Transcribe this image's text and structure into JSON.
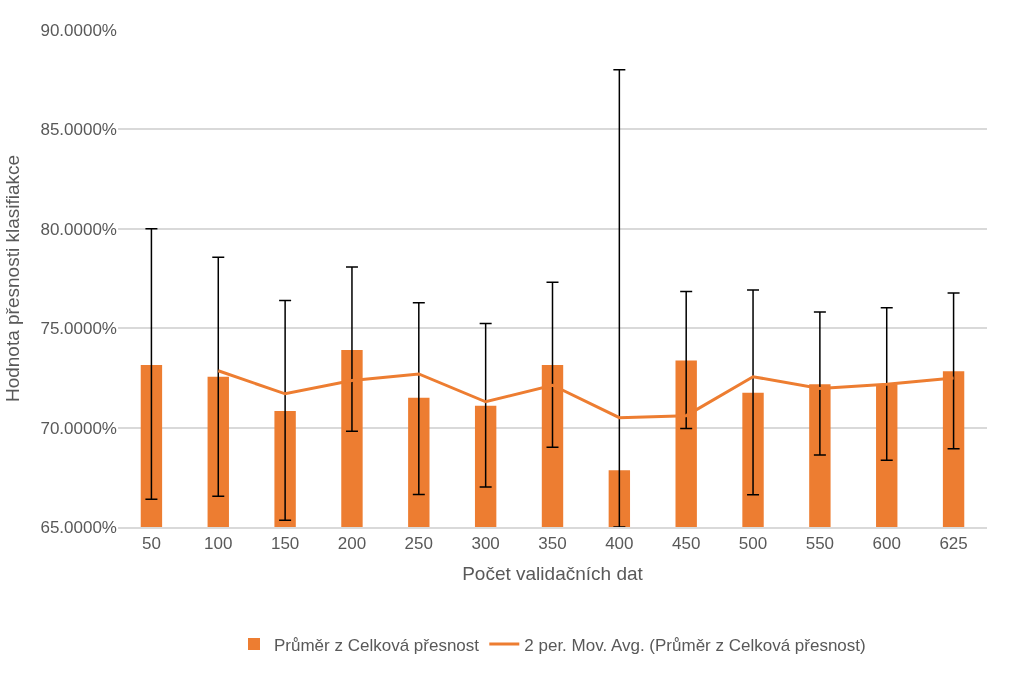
{
  "chart_data": {
    "type": "bar",
    "xlabel": "Počet validačních dat",
    "ylabel": "Hodnota přesnosti klasifiakce",
    "categories": [
      "50",
      "100",
      "150",
      "200",
      "250",
      "300",
      "350",
      "400",
      "450",
      "500",
      "550",
      "600",
      "625"
    ],
    "series": [
      {
        "name": "Průměr z Celková přesnost",
        "color": "#ed7d31",
        "values": [
          73.15,
          72.56,
          70.83,
          73.9,
          71.5,
          71.1,
          73.15,
          67.86,
          73.37,
          71.75,
          72.18,
          72.18,
          72.83
        ],
        "errors": [
          [
            66.39,
            80.0
          ],
          [
            66.55,
            78.57
          ],
          [
            65.34,
            76.39
          ],
          [
            69.82,
            78.08
          ],
          [
            66.64,
            76.28
          ],
          [
            67.01,
            75.24
          ],
          [
            69.01,
            77.31
          ],
          [
            65.0,
            88.0
          ],
          [
            69.95,
            76.84
          ],
          [
            66.62,
            76.92
          ],
          [
            68.62,
            75.82
          ],
          [
            68.36,
            76.03
          ],
          [
            68.94,
            76.77
          ]
        ]
      },
      {
        "name": "2 per. Mov. Avg. (Průměr z Celková přesnost)",
        "type": "line",
        "color": "#ed7d31",
        "values": [
          null,
          72.86,
          71.7,
          72.37,
          72.7,
          71.3,
          72.13,
          70.5,
          70.6,
          72.56,
          71.97,
          72.18,
          72.5
        ]
      }
    ],
    "ylim": [
      65,
      90
    ],
    "yticks": [
      {
        "value": 65,
        "label": "65.0000%"
      },
      {
        "value": 70,
        "label": "70.0000%"
      },
      {
        "value": 75,
        "label": "75.0000%"
      },
      {
        "value": 80,
        "label": "80.0000%"
      },
      {
        "value": 85,
        "label": "85.0000%"
      },
      {
        "value": 90,
        "label": "90.0000%"
      }
    ],
    "grid": "y",
    "legend": "bottom",
    "marker": "none",
    "line_style": "solid"
  }
}
